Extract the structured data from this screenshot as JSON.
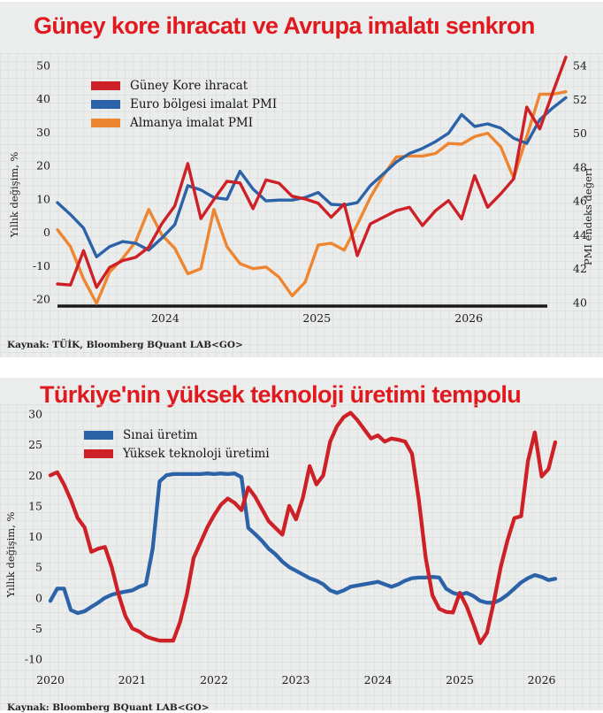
{
  "colors": {
    "title_red": "#e0191f",
    "panel_background": "#ebedec",
    "grid": "#d3d6d5",
    "series_red": "#cd2127",
    "series_blue": "#2c63a8",
    "series_orange": "#ee8530",
    "axis_text": "#1b1b1b",
    "baseline_black": "#1a1a1a"
  },
  "chart_data": [
    {
      "type": "line",
      "title": "Güney kore ihracatı ve Avrupa imalatı senkron",
      "source": "Kaynak: TÜİK, Bloomberg BQuant LAB<GO>",
      "left_axis": {
        "label": "Yıllık değişim, %",
        "min": -20,
        "max": 50,
        "ticks": [
          50,
          40,
          30,
          20,
          10,
          0,
          -10,
          -20
        ]
      },
      "right_axis": {
        "label": "PMI endeks değeri",
        "min": 40,
        "max": 54,
        "ticks": [
          54,
          52,
          50,
          48,
          46,
          44,
          42,
          40
        ]
      },
      "x_axis": {
        "ticks": [
          {
            "label": "2024",
            "f": 0.212
          },
          {
            "label": "2025",
            "f": 0.51
          },
          {
            "label": "2026",
            "f": 0.809
          }
        ]
      },
      "grid": true,
      "legend_position": "top-left",
      "series": [
        {
          "name": "Güney Kore ihracat",
          "color": "#cd2127",
          "axis": "left",
          "values": [
            -15.5,
            -15.8,
            -5.5,
            -16.5,
            -10.5,
            -8.5,
            -7.5,
            -4.5,
            2.5,
            7.9,
            20.6,
            4.1,
            9.8,
            15.3,
            14.8,
            7.1,
            15.7,
            14.7,
            10.8,
            10,
            8.7,
            4.5,
            8.5,
            -7,
            2.5,
            4.5,
            6.5,
            7.5,
            2,
            6.5,
            9.5,
            4,
            17,
            7.5,
            11.5,
            16,
            37.5,
            31,
            42,
            52.5
          ]
        },
        {
          "name": "Euro bölgesi imalat PMI",
          "color": "#2c63a8",
          "axis": "right",
          "values": [
            45.9,
            45.2,
            44.4,
            42.7,
            43.3,
            43.6,
            43.5,
            43.1,
            43.8,
            44.6,
            46.9,
            46.65,
            46.2,
            46.1,
            47.75,
            46.7,
            46.0,
            46.05,
            46.05,
            46.2,
            46.5,
            45.8,
            45.75,
            45.9,
            46.9,
            47.6,
            48.3,
            48.8,
            49.1,
            49.5,
            50.0,
            51.1,
            50.4,
            50.55,
            50.3,
            49.7,
            49.4,
            50.8,
            51.5,
            52.1
          ]
        },
        {
          "name": "Almanya imalat PMI",
          "color": "#ee8530",
          "axis": "right",
          "values": [
            44.3,
            43.3,
            41.4,
            39.95,
            41.8,
            42.6,
            43.6,
            45.5,
            44.0,
            43.2,
            41.7,
            42.0,
            45.5,
            43.3,
            42.3,
            42.0,
            42.1,
            41.5,
            40.4,
            41.2,
            43.4,
            43.5,
            43.1,
            44.6,
            46.2,
            47.5,
            48.6,
            48.65,
            48.65,
            48.8,
            49.4,
            49.35,
            49.8,
            50.0,
            49.2,
            47.35,
            49.8,
            52.3,
            52.3,
            52.45
          ]
        }
      ]
    },
    {
      "type": "line",
      "title": "Türkiye'nin yüksek teknoloji üretimi tempolu",
      "source": "Kaynak: Bloomberg BQuant LAB<GO>",
      "left_axis": {
        "label": "Yıllık  değişim, %",
        "min": -10,
        "max": 30,
        "ticks": [
          30,
          25,
          20,
          15,
          10,
          5,
          0,
          -5,
          -10
        ]
      },
      "x_axis": {
        "ticks": [
          {
            "label": "2020",
            "f": 0.0
          },
          {
            "label": "2021",
            "f": 0.162
          },
          {
            "label": "2022",
            "f": 0.324
          },
          {
            "label": "2023",
            "f": 0.486
          },
          {
            "label": "2024",
            "f": 0.649
          },
          {
            "label": "2025",
            "f": 0.811
          },
          {
            "label": "2026",
            "f": 0.973
          }
        ]
      },
      "grid": true,
      "legend_position": "top-left",
      "series": [
        {
          "name": "Sınai üretim",
          "color": "#2c63a8",
          "axis": "left",
          "values": [
            -0.5,
            1.5,
            1.5,
            -2,
            -2.5,
            -2.2,
            -1.5,
            -0.8,
            0,
            0.5,
            0.8,
            1,
            1.2,
            1.8,
            2.2,
            8,
            19,
            20,
            20.2,
            20.2,
            20.2,
            20.2,
            20.2,
            20.3,
            20.2,
            20.3,
            20.2,
            20.3,
            19.7,
            11.4,
            10.4,
            9.3,
            8,
            7.1,
            5.9,
            5,
            4.4,
            3.8,
            3.2,
            2.8,
            2.2,
            1.2,
            0.8,
            1.2,
            1.8,
            2,
            2.2,
            2.4,
            2.6,
            2.2,
            1.8,
            2.2,
            2.8,
            3.2,
            3.3,
            3.3,
            3.4,
            3.3,
            1.5,
            0.8,
            0.5,
            0.8,
            0.3,
            -0.5,
            -0.8,
            -0.8,
            -0.3,
            0.5,
            1.5,
            2.5,
            3.2,
            3.7,
            3.4,
            2.9,
            3.1
          ]
        },
        {
          "name": "Yüksek teknoloji üretimi",
          "color": "#cd2127",
          "axis": "left",
          "values": [
            20,
            20.5,
            18.5,
            16,
            13,
            11.5,
            7.5,
            8,
            8.3,
            5,
            0.5,
            -3,
            -5,
            -5.5,
            -6.3,
            -6.7,
            -7,
            -7,
            -7,
            -4,
            0.5,
            6.5,
            9,
            11.5,
            13.5,
            15.2,
            16.2,
            15.5,
            14.3,
            18,
            16.5,
            14.5,
            12.5,
            11.4,
            10.3,
            15,
            12.8,
            16.3,
            21.5,
            18.5,
            20,
            25.5,
            28,
            29.5,
            30.2,
            29,
            27.5,
            26,
            26.5,
            25.5,
            26,
            25.8,
            25.5,
            23.5,
            16,
            6.6,
            0.4,
            -1.8,
            -2.3,
            -2.4,
            0.8,
            -1.4,
            -4.3,
            -7.4,
            -5.7,
            -0.6,
            5,
            9.4,
            13,
            13.3,
            22.3,
            27,
            19.8,
            21,
            25.4
          ]
        }
      ]
    }
  ]
}
